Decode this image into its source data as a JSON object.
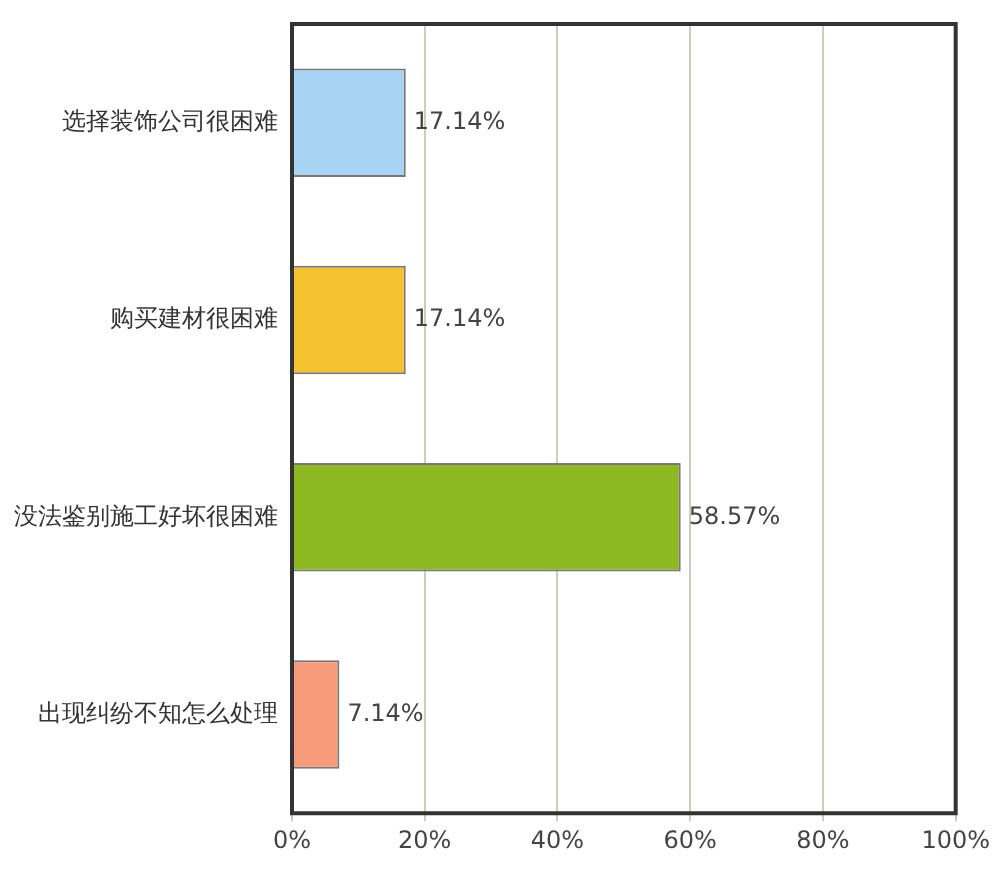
{
  "chart_data": {
    "type": "bar",
    "orientation": "horizontal",
    "categories": [
      "选择装饰公司很困难",
      "购买建材很困难",
      "没法鉴别施工好坏很困难",
      "出现纠纷不知怎么处理"
    ],
    "values": [
      17.14,
      17.14,
      58.57,
      7.14
    ],
    "colors": [
      "#a9d3f3",
      "#f4c22e",
      "#8cb921",
      "#f79b7a"
    ],
    "value_labels": [
      "17.14%",
      "17.14%",
      "58.57%",
      "7.14%"
    ],
    "xlim": [
      0,
      100
    ],
    "xticks": [
      {
        "value": 0,
        "label": "0%"
      },
      {
        "value": 20,
        "label": "20%"
      },
      {
        "value": 40,
        "label": "40%"
      },
      {
        "value": 60,
        "label": "60%"
      },
      {
        "value": 80,
        "label": "80%"
      },
      {
        "value": 100,
        "label": "100%"
      }
    ],
    "grid": "x",
    "legend": false
  }
}
